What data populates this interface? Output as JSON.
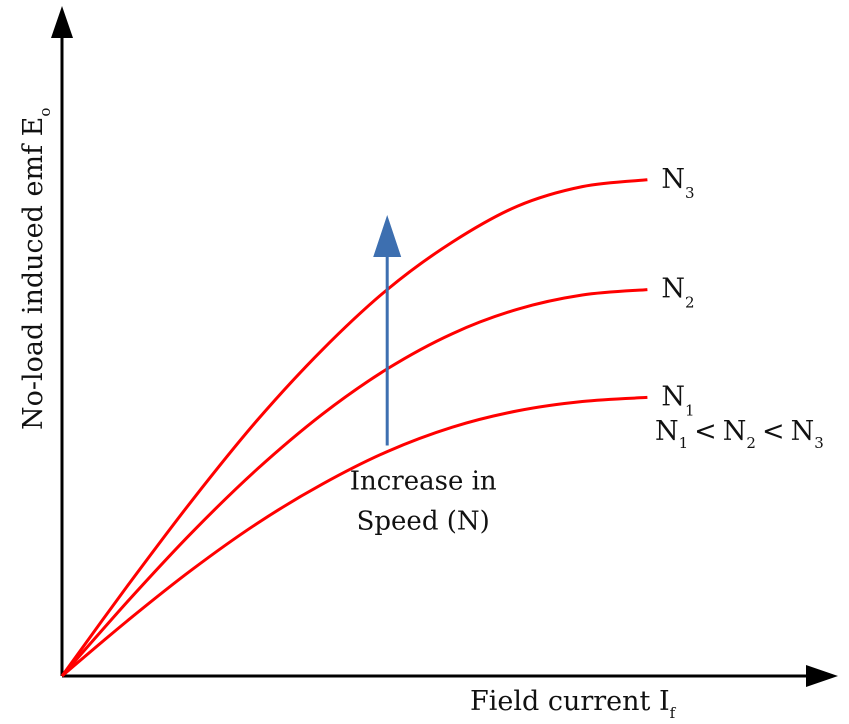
{
  "chart_data": {
    "type": "line",
    "title": "",
    "xlabel": "Field current I",
    "xlabel_subscript": "f",
    "ylabel": "No-load induced emf E",
    "ylabel_subscript": "o",
    "series": [
      {
        "name": "N",
        "subscript": "1",
        "color": "#ff0000",
        "points": [
          [
            0,
            0
          ],
          [
            10,
            8.1
          ],
          [
            20,
            15.7
          ],
          [
            30,
            22.5
          ],
          [
            40,
            28.3
          ],
          [
            50,
            33.1
          ],
          [
            60,
            36.7
          ],
          [
            70,
            39.1
          ],
          [
            80,
            40.5
          ],
          [
            90,
            41.1
          ]
        ]
      },
      {
        "name": "N",
        "subscript": "2",
        "color": "#ff0000",
        "points": [
          [
            0,
            0
          ],
          [
            10,
            10.9
          ],
          [
            20,
            21.2
          ],
          [
            30,
            30.5
          ],
          [
            40,
            38.6
          ],
          [
            50,
            45.3
          ],
          [
            60,
            50.5
          ],
          [
            70,
            54.1
          ],
          [
            80,
            56.2
          ],
          [
            90,
            57.0
          ]
        ]
      },
      {
        "name": "N",
        "subscript": "3",
        "color": "#ff0000",
        "points": [
          [
            0,
            0
          ],
          [
            10,
            13.2
          ],
          [
            20,
            25.9
          ],
          [
            30,
            37.7
          ],
          [
            40,
            48.1
          ],
          [
            50,
            57.0
          ],
          [
            60,
            64.0
          ],
          [
            70,
            69.3
          ],
          [
            80,
            72.2
          ],
          [
            90,
            73.2
          ]
        ]
      }
    ],
    "annotation": {
      "lines": [
        "Increase in",
        "Speed (N)"
      ],
      "arrow_color": "#3d6fb0",
      "x": 50,
      "y_from": 34,
      "y_to": 68
    },
    "inequality": {
      "base": "N",
      "subscripts": [
        "1",
        "2",
        "3"
      ],
      "separator": "<"
    },
    "xlim": [
      0,
      115
    ],
    "ylim": [
      0,
      95
    ],
    "grid": false,
    "legend": "none",
    "axis_color": "#000000"
  }
}
